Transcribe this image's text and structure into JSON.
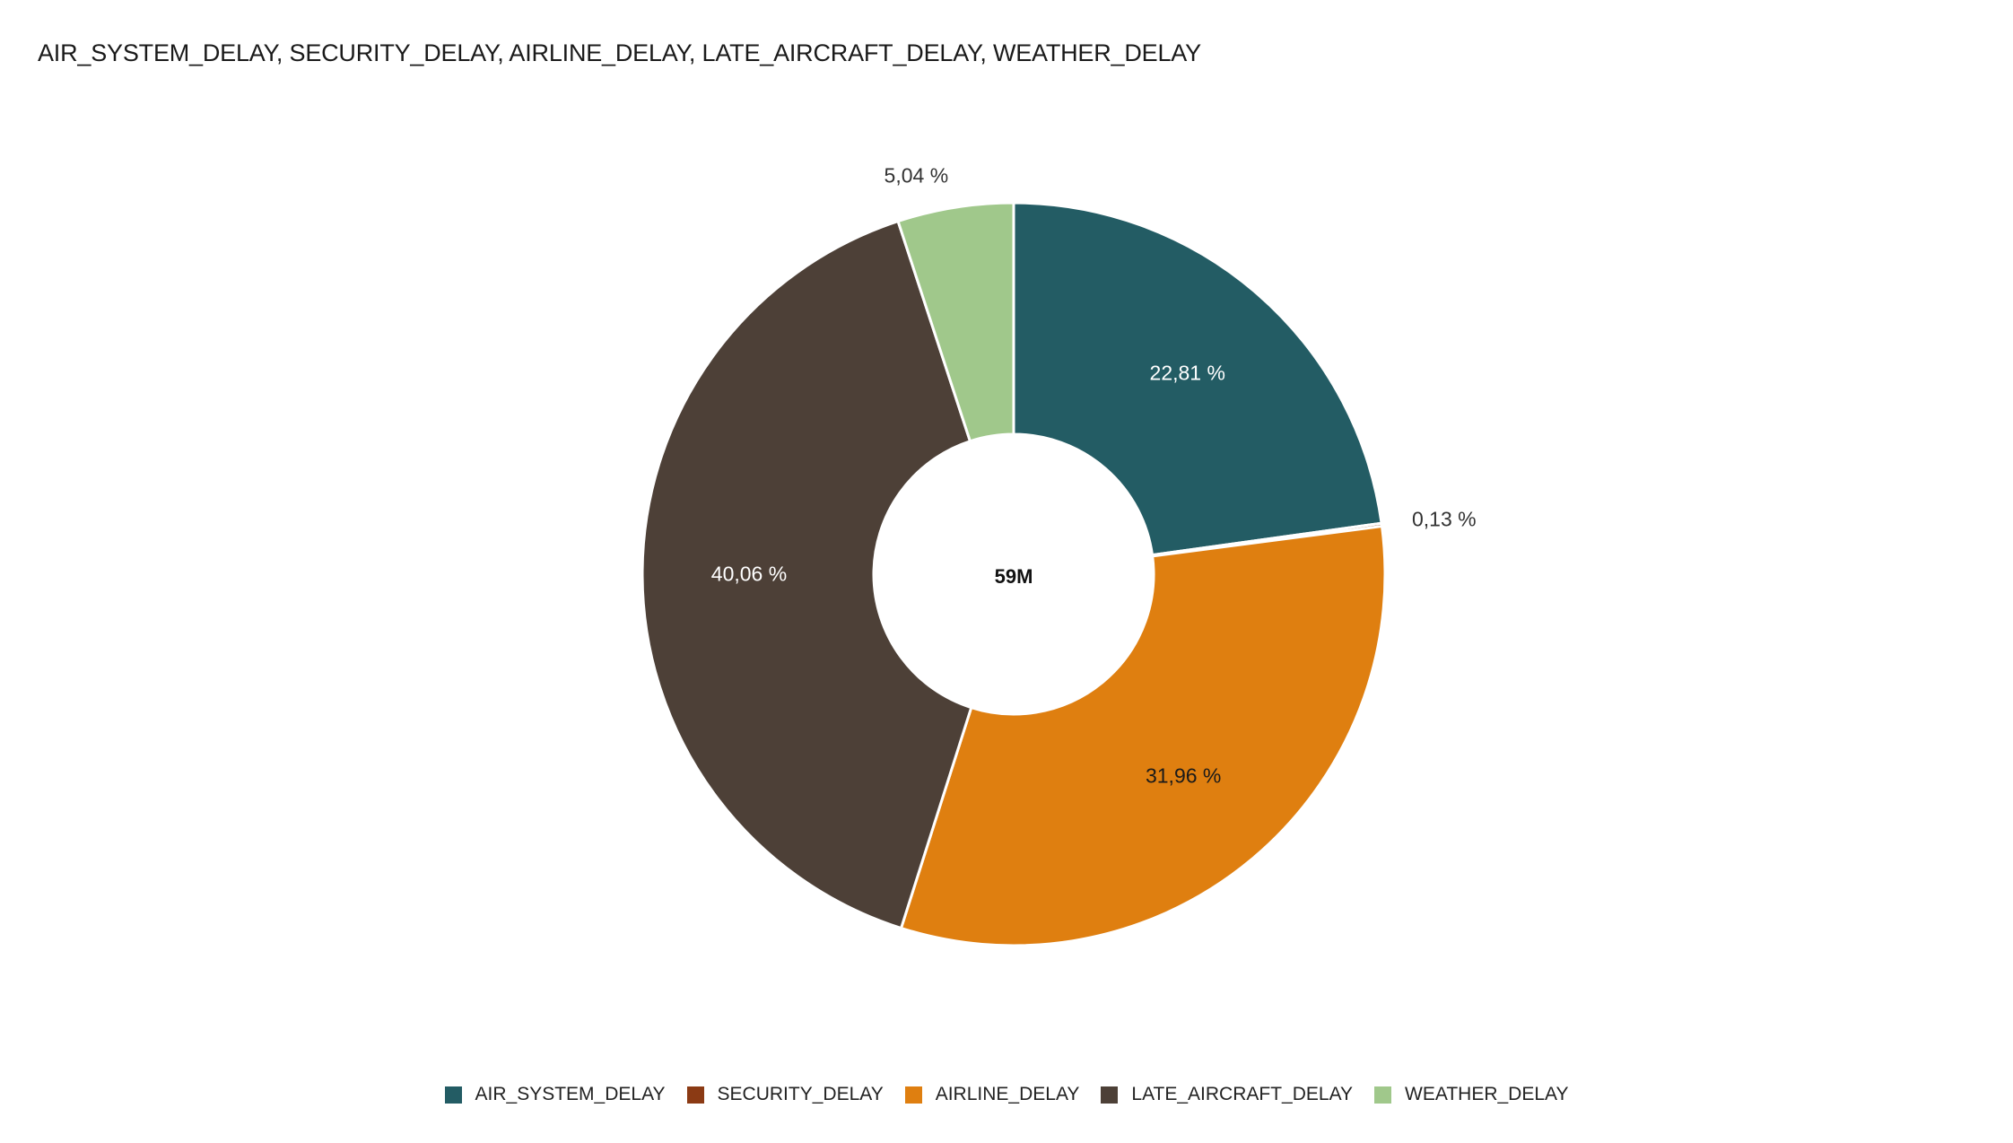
{
  "chart_data": {
    "type": "pie",
    "donut": true,
    "title": "AIR_SYSTEM_DELAY, SECURITY_DELAY, AIRLINE_DELAY, LATE_AIRCRAFT_DELAY, WEATHER_DELAY",
    "center_label": "59M",
    "categories": [
      "AIR_SYSTEM_DELAY",
      "SECURITY_DELAY",
      "AIRLINE_DELAY",
      "LATE_AIRCRAFT_DELAY",
      "WEATHER_DELAY"
    ],
    "values": [
      22.81,
      0.13,
      31.96,
      40.06,
      5.04
    ],
    "value_labels": [
      "22,81 %",
      "0,13 %",
      "31,96 %",
      "40,06 %",
      "5,04 %"
    ],
    "colors": [
      "#235c64",
      "#8b3a14",
      "#df7f10",
      "#4d4037",
      "#a0c88b"
    ],
    "label_colors": [
      "#ffffff",
      "#333333",
      "#1a1a1a",
      "#ffffff",
      "#333333"
    ],
    "label_placement": [
      "inside",
      "outside",
      "inside",
      "inside",
      "outside"
    ],
    "legend_position": "bottom"
  }
}
